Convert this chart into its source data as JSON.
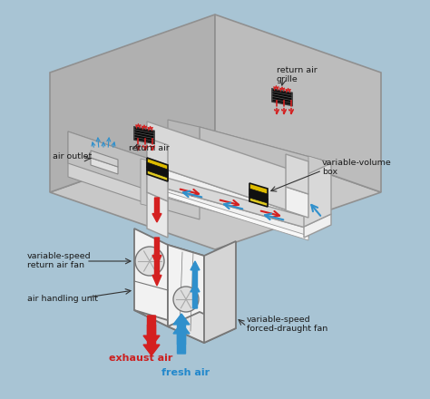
{
  "bg_color": "#a8c4d4",
  "colors": {
    "duct_fill": "#f0f0f0",
    "duct_top": "#e8e8e8",
    "duct_side": "#d8d8d8",
    "duct_edge": "#999999",
    "ahu_fill": "#f2f2f2",
    "ahu_top": "#e5e5e5",
    "ahu_side": "#d5d5d5",
    "ahu_edge": "#777777",
    "building_top": "#c8c8c8",
    "building_left": "#b0b0b0",
    "building_right": "#bcbcbc",
    "building_edge": "#909090",
    "room_floor": "#d2d2d2",
    "room_wall_l": "#c0c0c0",
    "room_wall_r": "#cacaca",
    "red_arrow": "#d42020",
    "blue_arrow": "#3090cc",
    "fresh_air_label": "#2288cc",
    "exhaust_label": "#cc2020",
    "black_label": "#1a1a1a",
    "vvb_yellow": "#ddc820",
    "vvb_black": "#111111",
    "grille_black": "#0a0a0a",
    "outlet_gray": "#c8c8c8",
    "inner_wall": "#b8b8b8"
  },
  "labels": {
    "fresh_air": "fresh air",
    "exhaust_air": "exhaust air",
    "ahu": "air handling unit",
    "vs_forced": "variable-speed\nforced-draught fan",
    "vs_return": "variable-speed\nreturn air fan",
    "air_outlet": "air outlet",
    "return_air": "return air",
    "vv_box": "variable-volume\nbox",
    "ra_grille": "return air\ngrille"
  }
}
